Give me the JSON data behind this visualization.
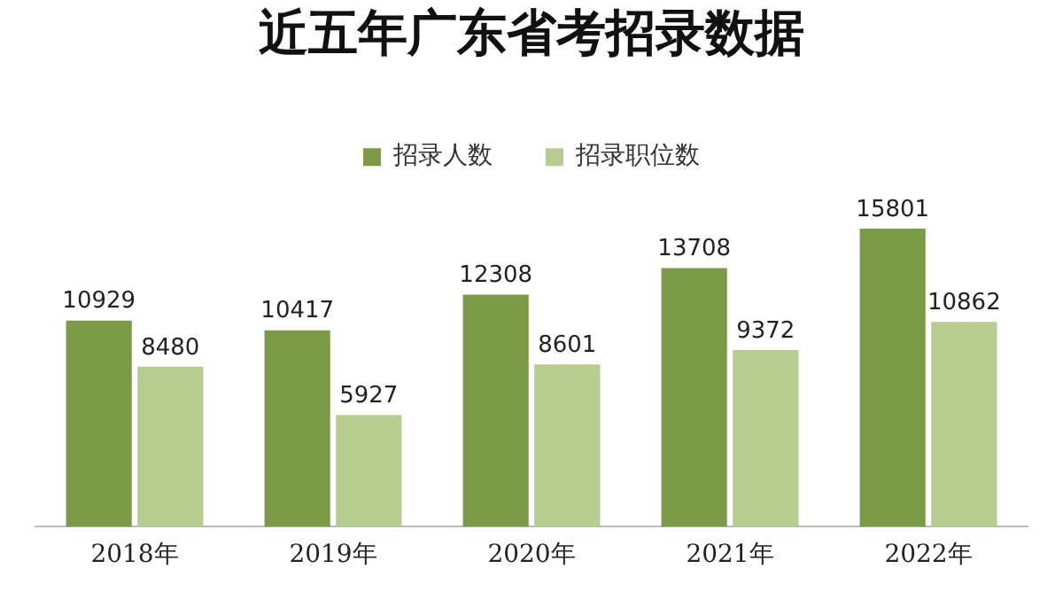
{
  "chart_data": {
    "type": "bar",
    "title": "近五年广东省考招录数据",
    "categories": [
      "2018年",
      "2019年",
      "2020年",
      "2021年",
      "2022年"
    ],
    "series": [
      {
        "name": "招录人数",
        "color": "#7b9b47",
        "values": [
          10929,
          10417,
          12308,
          13708,
          15801
        ]
      },
      {
        "name": "招录职位数",
        "color": "#b7cd90",
        "values": [
          8480,
          5927,
          8601,
          9372,
          10862
        ]
      }
    ],
    "data_labels": true,
    "legend": "top",
    "grid": false,
    "tick_labels": "x"
  }
}
